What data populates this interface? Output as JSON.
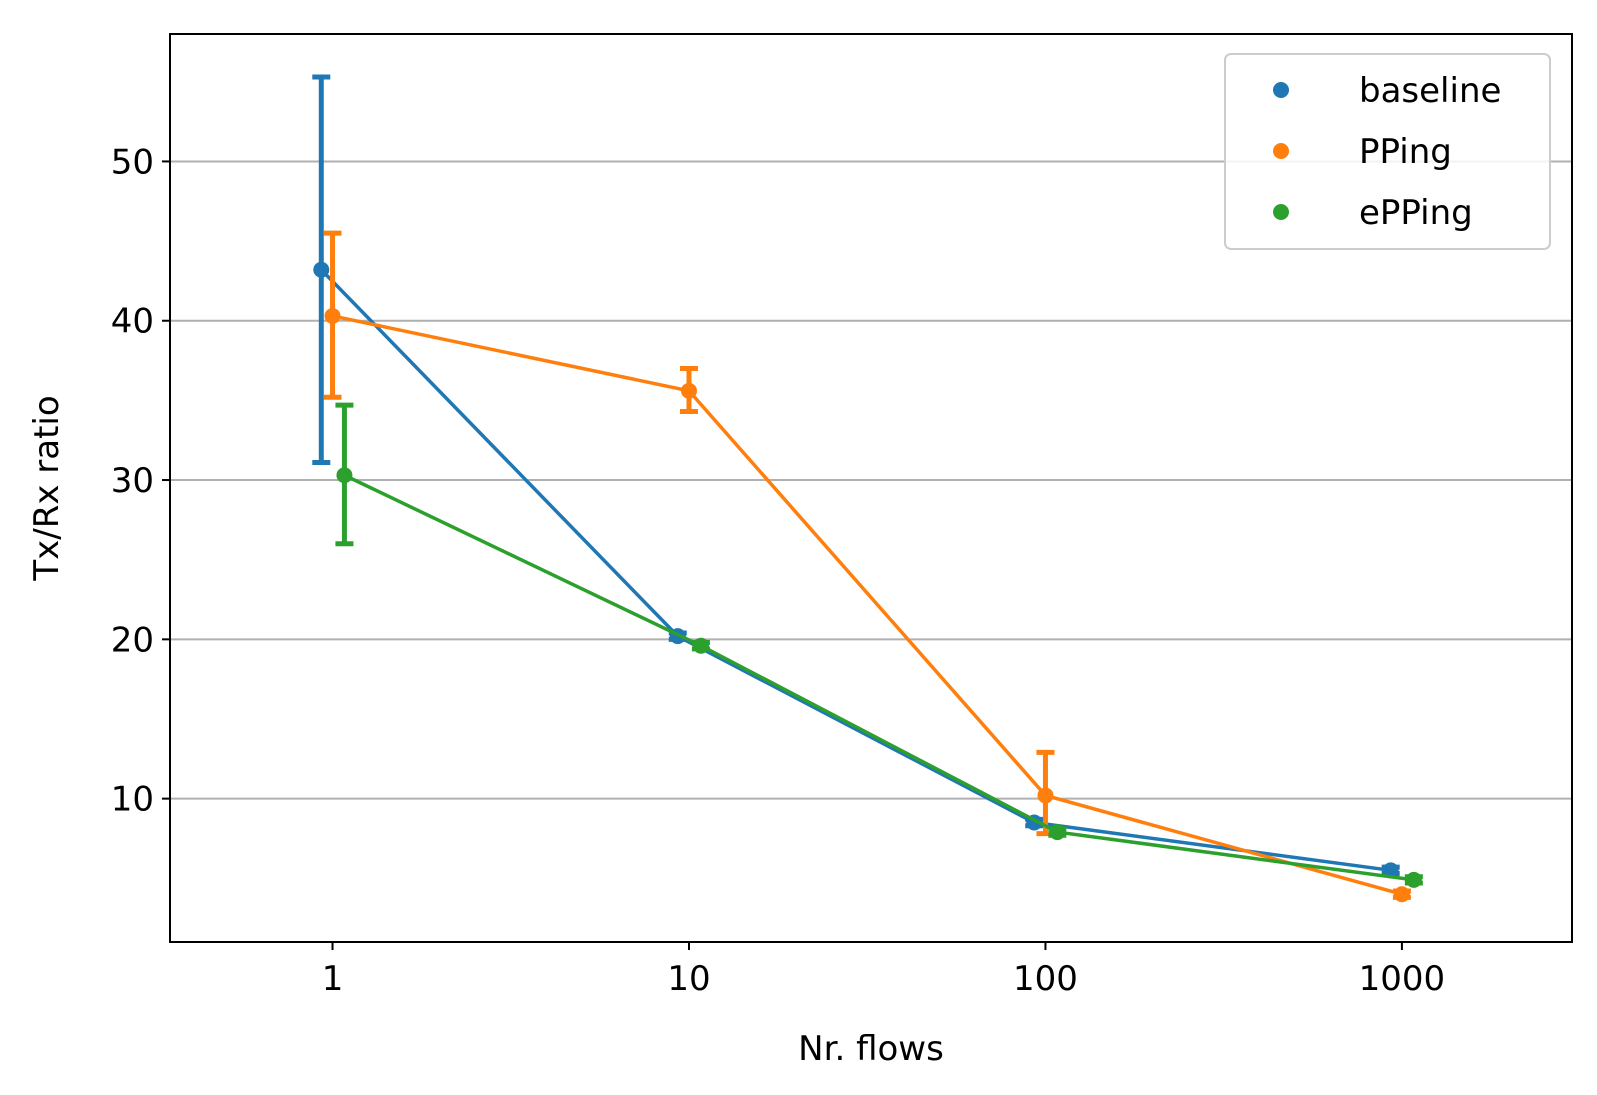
{
  "chart_data": {
    "type": "line",
    "xlabel": "Nr. flows",
    "ylabel": "Tx/Rx ratio",
    "x_scale": "log",
    "x": [
      1,
      10,
      100,
      1000
    ],
    "x_tick_labels": [
      "1",
      "10",
      "100",
      "1000"
    ],
    "xlim": [
      0.35,
      3000
    ],
    "y_ticks": [
      10,
      20,
      30,
      40,
      50
    ],
    "ylim": [
      1,
      58
    ],
    "grid": "horizontal",
    "legend_position": "top-right",
    "series": [
      {
        "name": "baseline",
        "color": "#1f77b4",
        "x_jitter": [
          0.93,
          0.93,
          0.93,
          0.93
        ],
        "y": [
          43.2,
          20.2,
          8.5,
          5.5
        ],
        "err_low": [
          31.1,
          20.0,
          8.3,
          5.3
        ],
        "err_high": [
          55.3,
          20.4,
          8.7,
          5.7
        ]
      },
      {
        "name": "PPing",
        "color": "#ff7f0e",
        "x_jitter": [
          1.0,
          1.0,
          1.0,
          1.0
        ],
        "y": [
          40.3,
          35.6,
          10.2,
          4.0
        ],
        "err_low": [
          35.2,
          34.3,
          7.8,
          3.8
        ],
        "err_high": [
          45.5,
          37.0,
          12.9,
          4.2
        ]
      },
      {
        "name": "ePPing",
        "color": "#2ca02c",
        "x_jitter": [
          1.08,
          1.08,
          1.08,
          1.08
        ],
        "y": [
          30.3,
          19.6,
          7.9,
          4.9
        ],
        "err_low": [
          26.0,
          19.4,
          7.7,
          4.7
        ],
        "err_high": [
          34.7,
          19.8,
          8.1,
          5.1
        ]
      }
    ]
  }
}
